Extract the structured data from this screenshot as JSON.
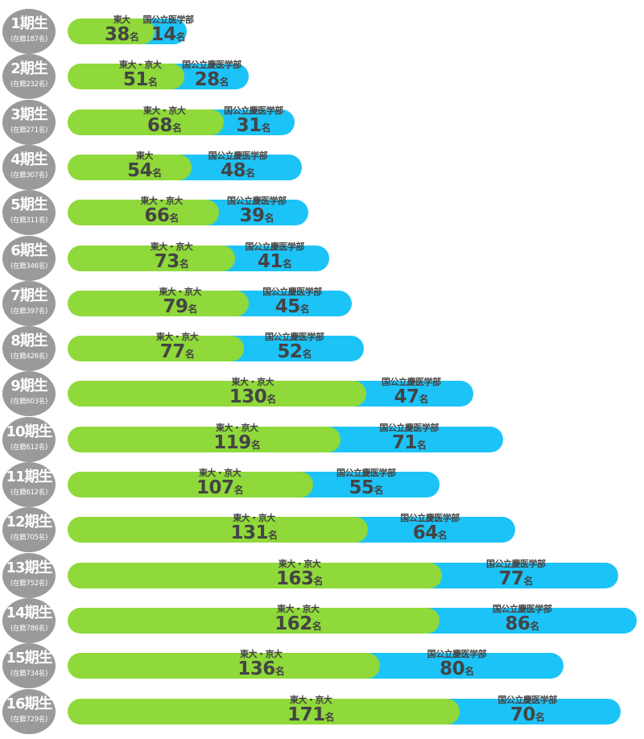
{
  "chart_data": {
    "type": "bar",
    "orientation": "horizontal",
    "stacked": true,
    "colors": {
      "green": "#8fd93a",
      "blue": "#1cc3f7",
      "badge": "#9a9a9a",
      "text": "#444444"
    },
    "unit": "名",
    "rows": [
      {
        "term": "1期生",
        "enrolled": "(在籍187名)",
        "green_label": "東大",
        "green": 38,
        "blue_label": "国公立医学部",
        "blue": 14
      },
      {
        "term": "2期生",
        "enrolled": "(在籍232名)",
        "green_label": "東大・京大",
        "green": 51,
        "blue_label": "国公立慶医学部",
        "blue": 28
      },
      {
        "term": "3期生",
        "enrolled": "(在籍271名)",
        "green_label": "東大・京大",
        "green": 68,
        "blue_label": "国公立慶医学部",
        "blue": 31
      },
      {
        "term": "4期生",
        "enrolled": "(在籍307名)",
        "green_label": "東大",
        "green": 54,
        "blue_label": "国公立慶医学部",
        "blue": 48
      },
      {
        "term": "5期生",
        "enrolled": "(在籍311名)",
        "green_label": "東大・京大",
        "green": 66,
        "blue_label": "国公立慶医学部",
        "blue": 39
      },
      {
        "term": "6期生",
        "enrolled": "(在籍346名)",
        "green_label": "東大・京大",
        "green": 73,
        "blue_label": "国公立慶医学部",
        "blue": 41
      },
      {
        "term": "7期生",
        "enrolled": "(在籍397名)",
        "green_label": "東大・京大",
        "green": 79,
        "blue_label": "国公立慶医学部",
        "blue": 45
      },
      {
        "term": "8期生",
        "enrolled": "(在籍426名)",
        "green_label": "東大・京大",
        "green": 77,
        "blue_label": "国公立慶医学部",
        "blue": 52
      },
      {
        "term": "9期生",
        "enrolled": "(在籍603名)",
        "green_label": "東大・京大",
        "green": 130,
        "blue_label": "国公立慶医学部",
        "blue": 47
      },
      {
        "term": "10期生",
        "enrolled": "(在籍612名)",
        "green_label": "東大・京大",
        "green": 119,
        "blue_label": "国公立慶医学部",
        "blue": 71
      },
      {
        "term": "11期生",
        "enrolled": "(在籍612名)",
        "green_label": "東大・京大",
        "green": 107,
        "blue_label": "国公立慶医学部",
        "blue": 55
      },
      {
        "term": "12期生",
        "enrolled": "(在籍705名)",
        "green_label": "東大・京大",
        "green": 131,
        "blue_label": "国公立慶医学部",
        "blue": 64
      },
      {
        "term": "13期生",
        "enrolled": "(在籍752名)",
        "green_label": "東大・京大",
        "green": 163,
        "blue_label": "国公立慶医学部",
        "blue": 77
      },
      {
        "term": "14期生",
        "enrolled": "(在籍786名)",
        "green_label": "東大・京大",
        "green": 162,
        "blue_label": "国公立慶医学部",
        "blue": 86
      },
      {
        "term": "15期生",
        "enrolled": "(在籍734名)",
        "green_label": "東大・京大",
        "green": 136,
        "blue_label": "国公立慶医学部",
        "blue": 80
      },
      {
        "term": "16期生",
        "enrolled": "(在籍729名)",
        "green_label": "東大・京大",
        "green": 171,
        "blue_label": "国公立慶医学部",
        "blue": 70
      }
    ]
  }
}
